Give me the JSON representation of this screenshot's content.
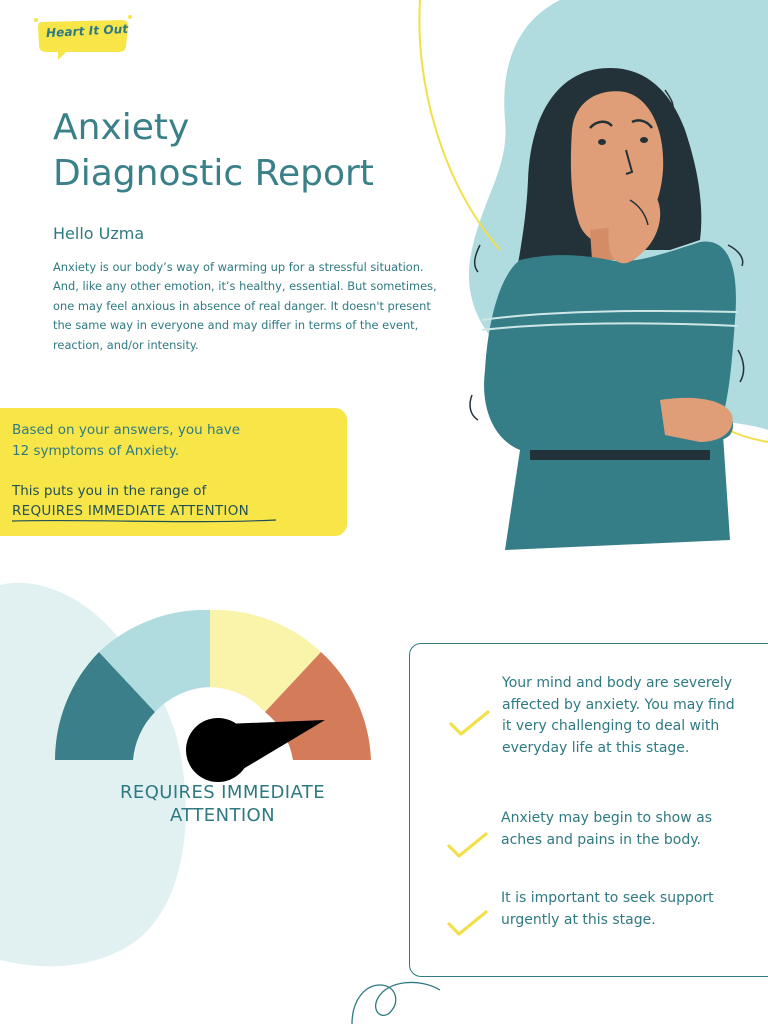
{
  "brand": {
    "logo_text": "Heart It Out",
    "accent": "#f8e648",
    "teal": "#2f7a82"
  },
  "report": {
    "title_line1": "Anxiety",
    "title_line2": "Diagnostic Report",
    "greeting": "Hello Uzma",
    "intro": "Anxiety is our body’s way of warming up for a stressful situation. And, like any other emotion, it’s healthy, essential. But sometimes, one may feel anxious in absence of real danger. It doesn't present the same way in everyone and may differ in terms of the event, reaction, and/or intensity."
  },
  "result": {
    "answers_text": "Based on your answers, you have",
    "symptom_count": "12",
    "symptoms_suffix": "symptoms of Anxiety.",
    "range_intro": "This puts you in the range of",
    "range_label": "REQUIRES IMMEDIATE ATTENTION"
  },
  "gauge": {
    "label_line1": "REQUIRES IMMEDIATE",
    "label_line2": "ATTENTION",
    "segment_colors": [
      "#3a7f89",
      "#b0dcdf",
      "#f9f4a9",
      "#d47b5a"
    ],
    "active_segment": 4,
    "segment_count": 4
  },
  "info": {
    "items": [
      {
        "text": "Your mind and body are severely affected by anxiety. You may find it very challenging to deal with everyday life at this stage.",
        "icon": "check-icon"
      },
      {
        "text": "Anxiety may begin to show as aches and pains in the body.",
        "icon": "check-icon"
      },
      {
        "text": "It is important to seek support urgently at this stage.",
        "icon": "check-icon"
      }
    ]
  },
  "illustration": {
    "icon": "anxious-woman-illustration"
  }
}
